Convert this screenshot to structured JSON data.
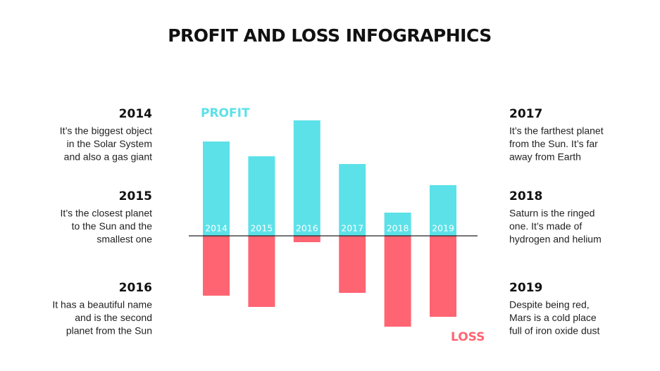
{
  "chart_data": {
    "type": "bar",
    "title": "PROFIT AND LOSS INFOGRAPHICS",
    "categories": [
      "2014",
      "2015",
      "2016",
      "2017",
      "2018",
      "2019"
    ],
    "series": [
      {
        "name": "PROFIT",
        "color": "#5ce1e8",
        "values": [
          134,
          113,
          164,
          102,
          33,
          72
        ]
      },
      {
        "name": "LOSS",
        "color": "#ff6472",
        "values": [
          85,
          101,
          9,
          81,
          129,
          115
        ]
      }
    ],
    "annotations": [
      {
        "title": "2014",
        "lines": [
          "It’s the biggest object",
          "in the Solar System",
          "and also a gas giant"
        ]
      },
      {
        "title": "2015",
        "lines": [
          "It’s the closest planet",
          "to the Sun and the",
          "smallest one"
        ]
      },
      {
        "title": "2016",
        "lines": [
          "It has a beautiful name",
          "and is the second",
          "planet from the Sun"
        ]
      },
      {
        "title": "2017",
        "lines": [
          "It’s the farthest planet",
          "from the Sun. It’s far",
          "away from Earth"
        ]
      },
      {
        "title": "2018",
        "lines": [
          "Saturn is the ringed",
          "one. It’s made of",
          "hydrogen and helium"
        ]
      },
      {
        "title": "2019",
        "lines": [
          "Despite being red,",
          "Mars is a cold place",
          "full of iron oxide dust"
        ]
      }
    ]
  }
}
